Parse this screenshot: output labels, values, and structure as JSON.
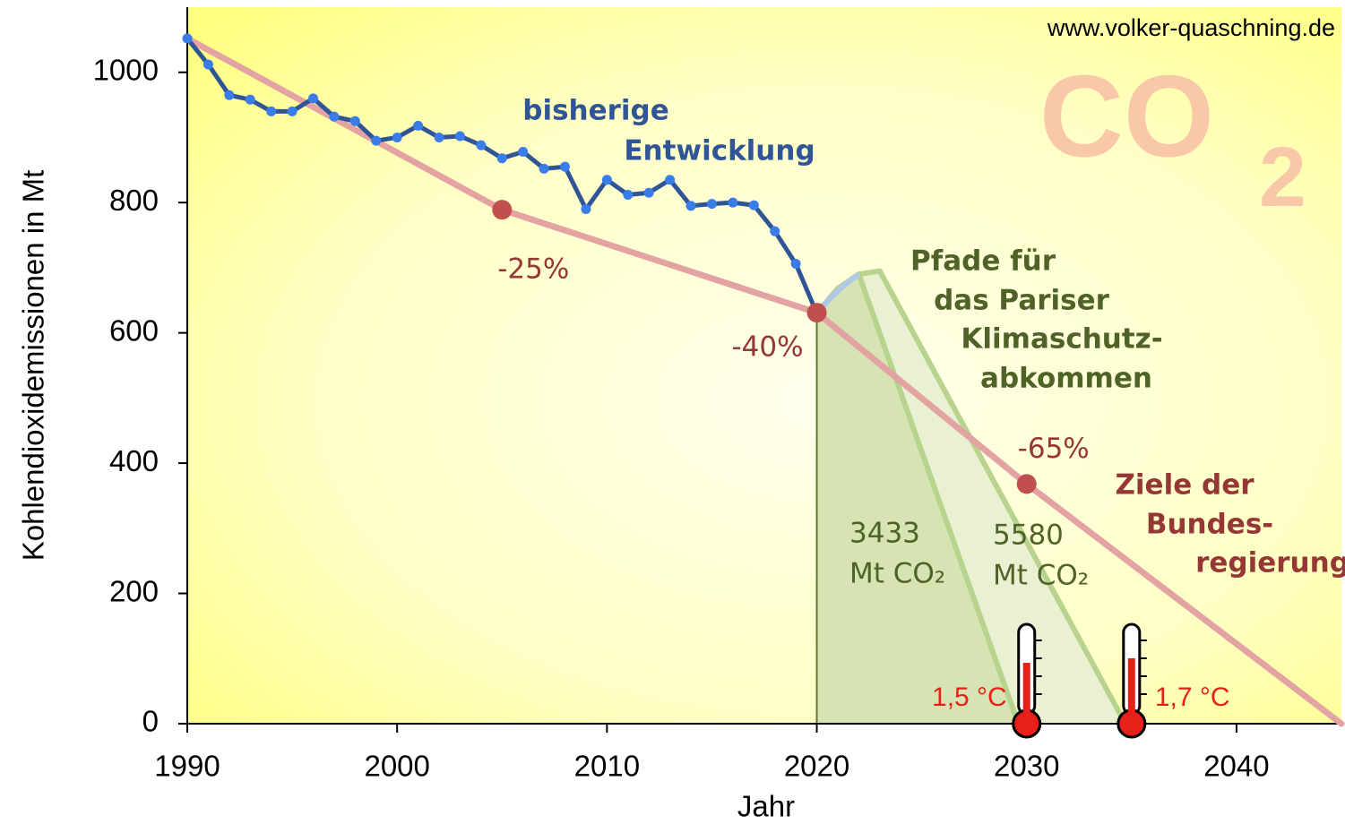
{
  "chart_data": {
    "type": "line",
    "source": "www.volker-quaschning.de",
    "watermark": [
      "CO",
      "2"
    ],
    "xlabel": "Jahr",
    "ylabel": "Kohlendioxidemissionen in Mt",
    "xlim": [
      1990,
      2045
    ],
    "ylim": [
      0,
      1100
    ],
    "xticks": [
      1990,
      2000,
      2010,
      2020,
      2030,
      2040
    ],
    "yticks": [
      0,
      200,
      400,
      600,
      800,
      1000
    ],
    "series": [
      {
        "color": "#2f5597",
        "marker_color": "#3a7de8",
        "x": [
          1990,
          1991,
          1992,
          1993,
          1994,
          1995,
          1996,
          1997,
          1998,
          1999,
          2000,
          2001,
          2002,
          2003,
          2004,
          2005,
          2006,
          2007,
          2008,
          2009,
          2010,
          2011,
          2012,
          2013,
          2014,
          2015,
          2016,
          2017,
          2018,
          2019,
          2020
        ],
        "values": [
          1052,
          1012,
          965,
          958,
          940,
          940,
          960,
          932,
          925,
          895,
          900,
          918,
          900,
          902,
          888,
          868,
          878,
          852,
          855,
          790,
          835,
          812,
          815,
          835,
          795,
          798,
          800,
          796,
          756,
          706,
          630
        ]
      },
      {
        "color": "#e3a3a3",
        "marker_color": "#c0504d",
        "x": [
          1990,
          2005,
          2020,
          2030,
          2045
        ],
        "values": [
          1052,
          789,
          631,
          368,
          0
        ],
        "value_labels": [
          null,
          "-25%",
          "-40%",
          "-65%",
          null
        ]
      },
      {
        "color": "#b8d38e",
        "fill": "#d6e4b4",
        "x": [
          2020,
          2021,
          2022,
          2029.6
        ],
        "values": [
          630,
          668,
          690,
          0
        ]
      },
      {
        "color": "#b8d38e",
        "fill": "#eaf1d2",
        "x": [
          2020,
          2021,
          2022,
          2023,
          2034.7
        ],
        "values": [
          630,
          668,
          690,
          695,
          0
        ]
      }
    ],
    "annotations": {
      "history": [
        "bisherige",
        "Entwicklung"
      ],
      "paris": [
        "Pfade für",
        "das Pariser",
        "Klimaschutz-",
        "abkommen"
      ],
      "targets": [
        "Ziele der",
        "Bundes-",
        "regierung"
      ],
      "budget_a": [
        "3433",
        "Mt CO₂"
      ],
      "budget_b": [
        "5580",
        "Mt CO₂"
      ],
      "temp_a": "1,5 °C",
      "temp_b": "1,7 °C"
    }
  }
}
